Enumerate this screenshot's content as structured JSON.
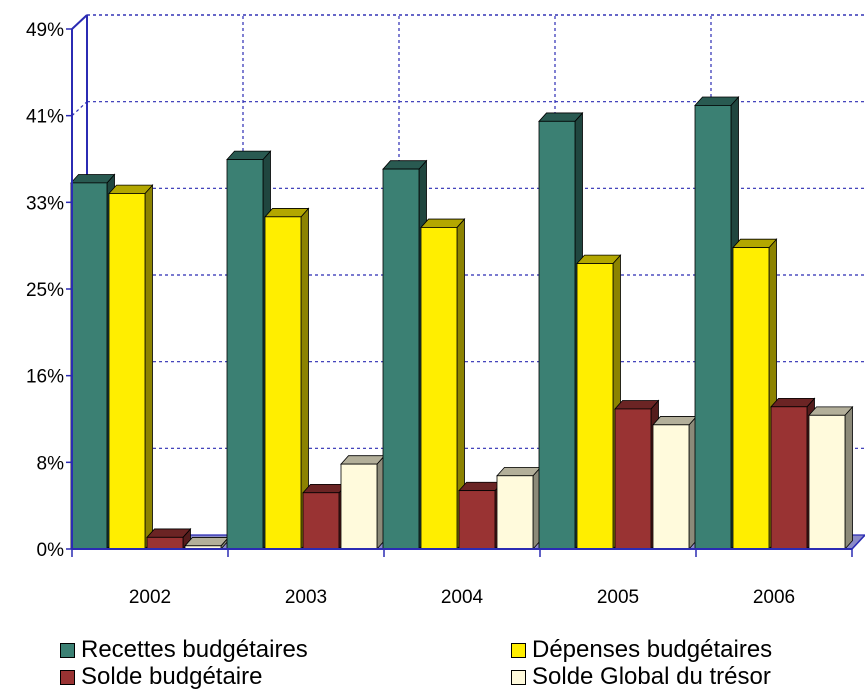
{
  "chart_data": {
    "type": "bar",
    "categories": [
      "2002",
      "2003",
      "2004",
      "2005",
      "2006"
    ],
    "yticks": [
      "0%",
      "8%",
      "16%",
      "25%",
      "33%",
      "41%",
      "49%"
    ],
    "ylim": [
      0,
      49
    ],
    "grid": true,
    "legend_position": "bottom",
    "series": [
      {
        "name": "Recettes budgétaires",
        "color": "#3b8073",
        "values": [
          34.5,
          36.7,
          35.8,
          40.3,
          41.8
        ]
      },
      {
        "name": "Dépenses budgétaires",
        "color": "#ffee00",
        "values": [
          33.5,
          31.3,
          30.3,
          26.9,
          28.4
        ]
      },
      {
        "name": "Solde budgétaire",
        "color": "#993333",
        "values": [
          1.1,
          5.3,
          5.5,
          13.2,
          13.4
        ]
      },
      {
        "name": "Solde Global du trésor",
        "color": "#fffadc",
        "values": [
          0.3,
          8.0,
          6.9,
          11.7,
          12.6
        ]
      }
    ]
  },
  "legend": [
    {
      "label": "Recettes budgétaires",
      "color": "#3b8073"
    },
    {
      "label": "Dépenses budgétaires",
      "color": "#ffee00"
    },
    {
      "label": "Solde budgétaire",
      "color": "#993333"
    },
    {
      "label": "Solde Global du trésor",
      "color": "#fffadc"
    }
  ]
}
